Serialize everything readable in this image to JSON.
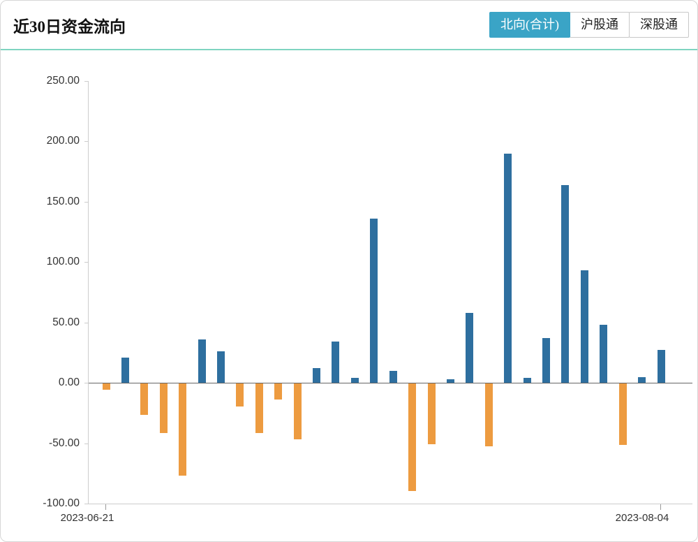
{
  "header": {
    "title": "近30日资金流向",
    "tabs": [
      {
        "label": "北向(合计)",
        "active": true
      },
      {
        "label": "沪股通",
        "active": false
      },
      {
        "label": "深股通",
        "active": false
      }
    ]
  },
  "colors": {
    "active_tab_bg": "#3aa4c6",
    "active_tab_text": "#ffffff",
    "header_divider": "#7fd4c0",
    "axis_line": "#cccccc",
    "zero_line": "#666666",
    "tick_text": "#333333",
    "inflow_bar": "#2e6f9f",
    "outflow_bar": "#ed9b40"
  },
  "chart_data": {
    "type": "bar",
    "title": "近30日资金流向",
    "series_name": "北向(合计)",
    "values": [
      -5,
      21,
      -26,
      -41,
      -76,
      36,
      26,
      -19,
      -41,
      -13,
      -46,
      12,
      34,
      4,
      136,
      10,
      -89,
      -50,
      3,
      58,
      -52,
      190,
      4,
      37,
      164,
      93,
      48,
      -51,
      5,
      27
    ],
    "bar_count": 30,
    "x_tick_labels": [
      "2023-06-21",
      "2023-08-04"
    ],
    "y_ticks": [
      250,
      200,
      150,
      100,
      50,
      0,
      -50,
      -100
    ],
    "y_tick_labels": [
      "250.00",
      "200.00",
      "150.00",
      "100.00",
      "50.00",
      "0.00",
      "-50.00",
      "-100.00"
    ],
    "ylim": [
      -100,
      250
    ],
    "grid": false,
    "legend": "none",
    "positive_color": "#2e6f9f",
    "negative_color": "#ed9b40"
  }
}
